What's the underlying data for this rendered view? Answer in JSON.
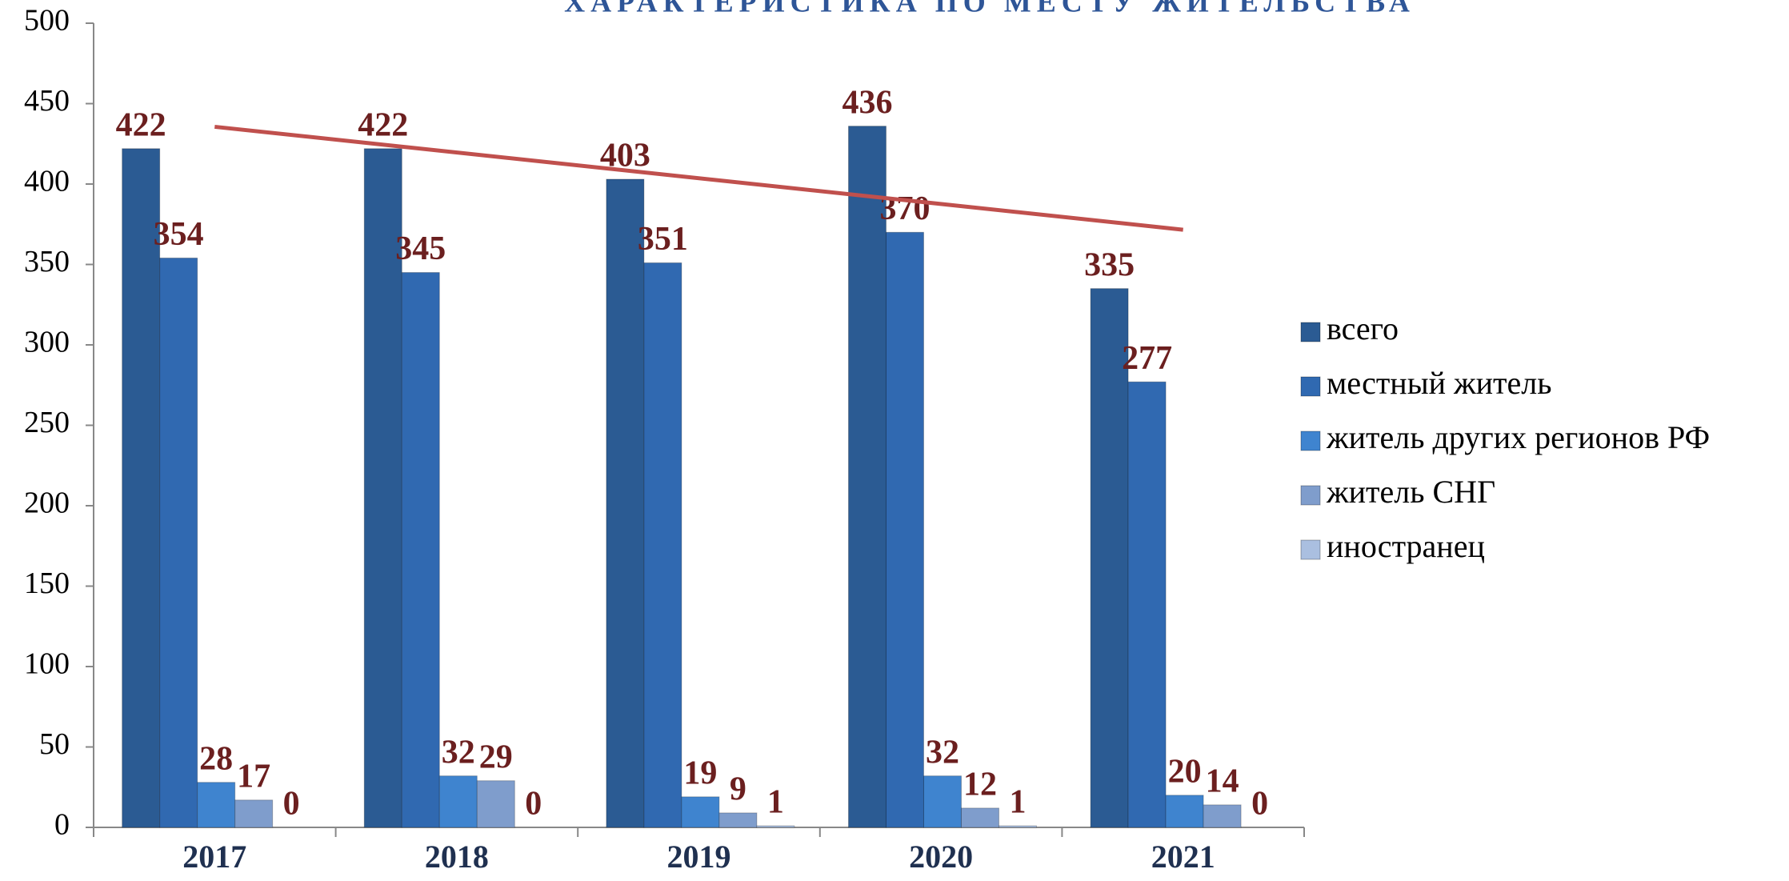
{
  "chart_data": {
    "type": "bar",
    "title": "ХАРАКТЕРИСТИКА ПО МЕСТУ ЖИТЕЛЬСТВА",
    "categories": [
      "2017",
      "2018",
      "2019",
      "2020",
      "2021"
    ],
    "series": [
      {
        "name": "всего",
        "color": "#2b5b93",
        "values": [
          422,
          422,
          403,
          436,
          335
        ]
      },
      {
        "name": "местный житель",
        "color": "#3069b1",
        "values": [
          354,
          345,
          351,
          370,
          277
        ]
      },
      {
        "name": "житель других регионов РФ",
        "color": "#3f84cf",
        "values": [
          28,
          32,
          19,
          32,
          20
        ]
      },
      {
        "name": "житель СНГ",
        "color": "#7f9dcc",
        "values": [
          17,
          29,
          9,
          12,
          14
        ]
      },
      {
        "name": "иностранец",
        "color": "#aabfe0",
        "values": [
          0,
          0,
          1,
          1,
          0
        ]
      }
    ],
    "ylim": [
      0,
      500
    ],
    "yticks": [
      0,
      50,
      100,
      150,
      200,
      250,
      300,
      350,
      400,
      450,
      500
    ],
    "trendline": {
      "series": 0,
      "color": "#c0504d"
    },
    "legend": "right"
  }
}
